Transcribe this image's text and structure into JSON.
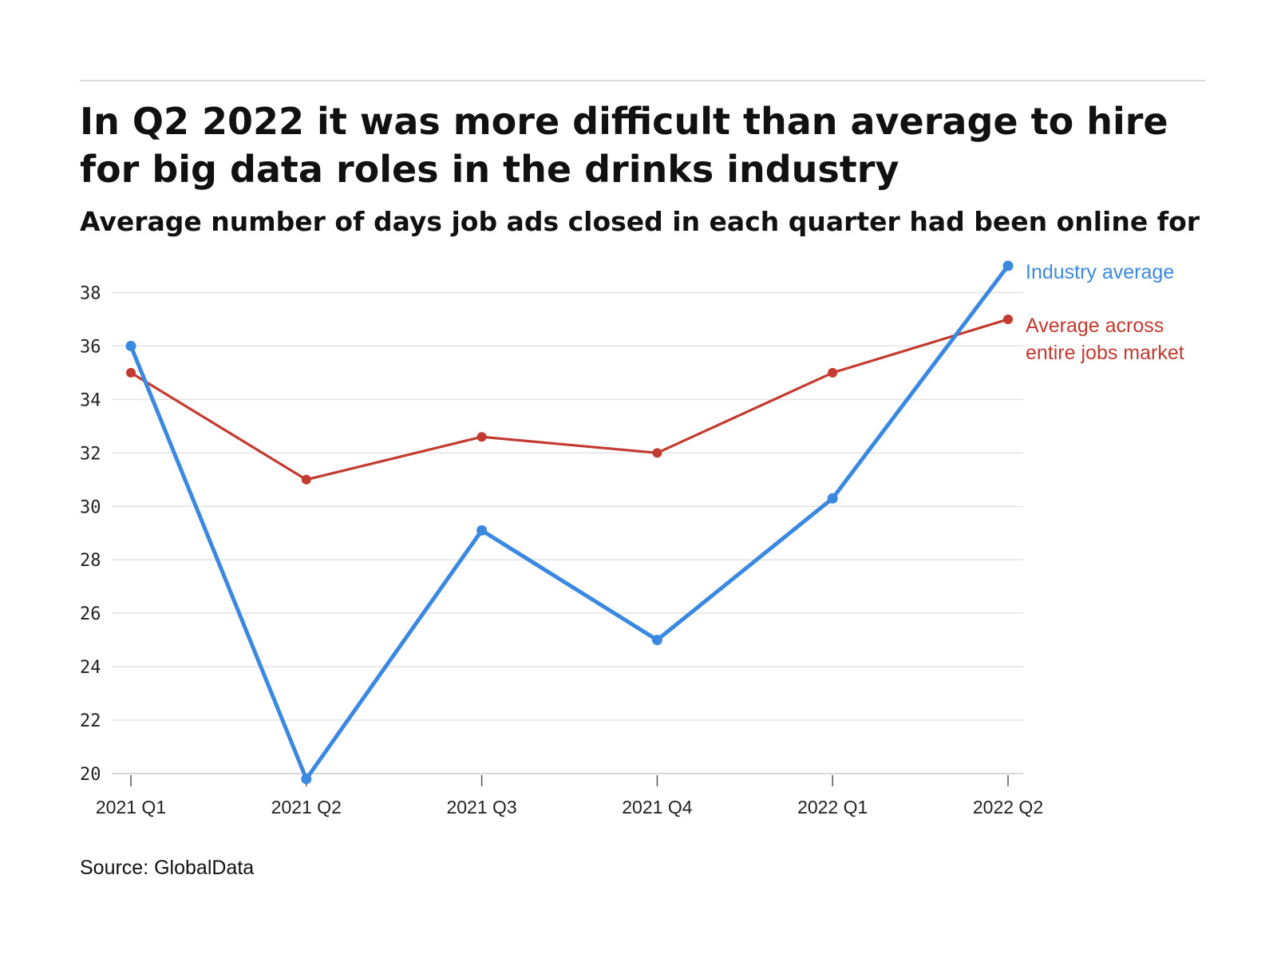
{
  "header": {
    "title": "In Q2 2022 it was more difficult than average to hire for big data roles in the drinks industry",
    "subtitle": "Average number of days job ads closed in each quarter had been online for"
  },
  "footer": {
    "source": "Source: GlobalData"
  },
  "chart_data": {
    "type": "line",
    "title": "In Q2 2022 it was more difficult than average to hire for big data roles in the drinks industry",
    "subtitle": "Average number of days job ads closed in each quarter had been online for",
    "categories": [
      "2021 Q1",
      "2021 Q2",
      "2021 Q3",
      "2021 Q4",
      "2022 Q1",
      "2022 Q2"
    ],
    "yticks": [
      20,
      22,
      24,
      26,
      28,
      30,
      32,
      34,
      36,
      38
    ],
    "ylim": [
      20,
      39
    ],
    "grid": true,
    "legend": "direct labels at line ends (right)",
    "series": [
      {
        "name": "Industry average",
        "label_lines": [
          "Industry average"
        ],
        "color": "#3b88e0",
        "values": [
          36,
          19.8,
          29.1,
          25,
          30.3,
          39
        ]
      },
      {
        "name": "Average across entire jobs market",
        "label_lines": [
          "Average across",
          "entire jobs market"
        ],
        "color": "#c23a30",
        "values": [
          35,
          31,
          32.6,
          32,
          35,
          37
        ]
      }
    ]
  }
}
